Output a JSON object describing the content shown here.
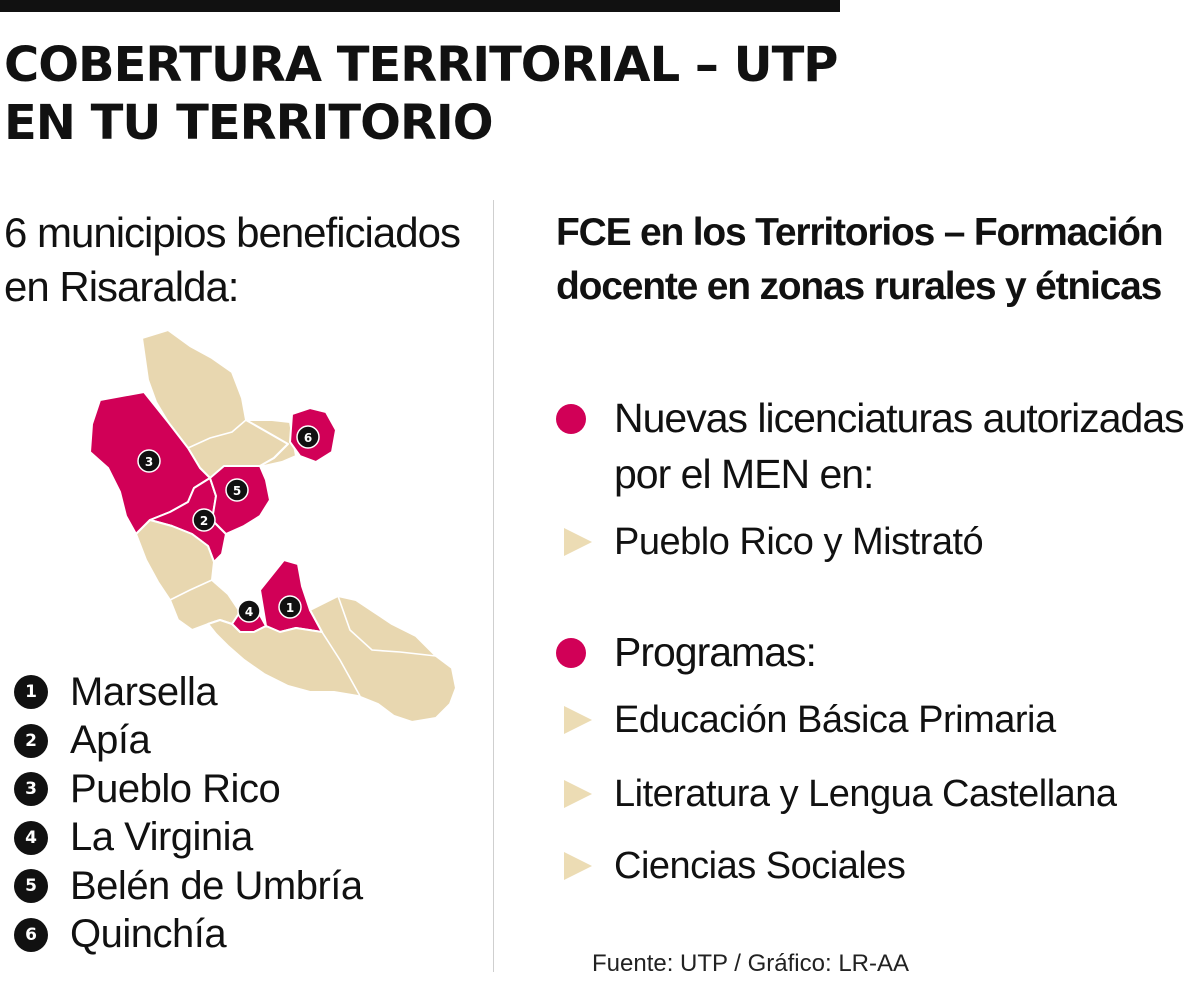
{
  "title": {
    "line1": "COBERTURA TERRITORIAL – UTP",
    "line2": "EN TU TERRITORIO"
  },
  "left": {
    "heading_line1": "6 municipios beneficiados",
    "heading_line2": "en Risaralda:"
  },
  "map": {
    "base_color": "#e8d7b0",
    "highlight_color": "#d10057",
    "border_color": "#ffffff",
    "markers": [
      "1",
      "2",
      "3",
      "4",
      "5",
      "6"
    ]
  },
  "municipalities": [
    {
      "num": "1",
      "name": "Marsella"
    },
    {
      "num": "2",
      "name": "Apía"
    },
    {
      "num": "3",
      "name": "Pueblo Rico"
    },
    {
      "num": "4",
      "name": "La Virginia"
    },
    {
      "num": "5",
      "name": "Belén de Umbría"
    },
    {
      "num": "6",
      "name": "Quinchía"
    }
  ],
  "right": {
    "heading_line1": "FCE en los Territorios – Formación",
    "heading_line2": "docente en zonas rurales y étnicas",
    "section1": {
      "line1": "Nuevas licenciaturas autorizadas",
      "line2": "por el MEN en:",
      "items": [
        "Pueblo Rico y Mistrató"
      ]
    },
    "section2": {
      "label": "Programas:",
      "items": [
        "Educación Básica Primaria",
        "Literatura y Lengua Castellana",
        "Ciencias Sociales"
      ]
    }
  },
  "source": "Fuente:  UTP / Gráfico: LR-AA",
  "colors": {
    "accent": "#d10057",
    "map_base": "#e8d7b0",
    "triangle": "#ecdcb4",
    "text": "#111111"
  }
}
